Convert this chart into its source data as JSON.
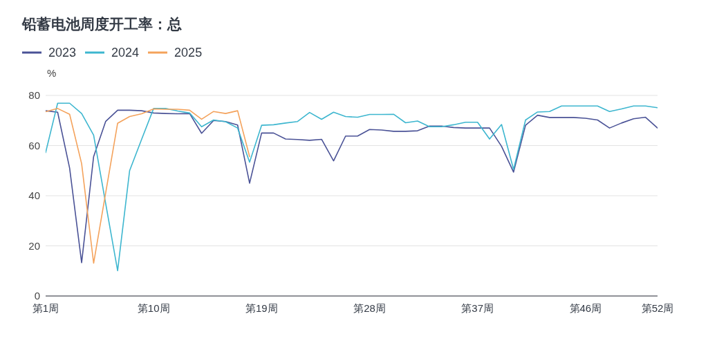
{
  "chart_data": {
    "type": "line",
    "title": "铅蓄电池周度开工率：总",
    "ylabel": "%",
    "categories": [
      "第1周",
      null,
      null,
      null,
      null,
      null,
      null,
      null,
      null,
      "第10周",
      null,
      null,
      null,
      null,
      null,
      null,
      null,
      null,
      "第19周",
      null,
      null,
      null,
      null,
      null,
      null,
      null,
      null,
      "第28周",
      null,
      null,
      null,
      null,
      null,
      null,
      null,
      null,
      "第37周",
      null,
      null,
      null,
      null,
      null,
      null,
      null,
      null,
      "第46周",
      null,
      null,
      null,
      null,
      null,
      "第52周"
    ],
    "series": [
      {
        "name": "2023",
        "color": "#4a5296",
        "values": [
          73.9,
          73.3,
          51.0,
          13.3,
          55.6,
          69.6,
          74.1,
          74.1,
          73.9,
          73.0,
          72.8,
          72.7,
          72.8,
          64.9,
          70.0,
          69.6,
          68.2,
          45.0,
          65.0,
          65.0,
          62.6,
          62.4,
          62.1,
          62.5,
          53.9,
          63.8,
          63.8,
          66.4,
          66.2,
          65.7,
          65.7,
          65.9,
          67.8,
          67.8,
          67.2,
          67.0,
          67.0,
          67.0,
          59.7,
          49.4,
          68.1,
          72.1,
          71.2,
          71.2,
          71.2,
          70.9,
          70.2,
          67.0,
          69.0,
          70.7,
          71.3,
          67.0
        ]
      },
      {
        "name": "2024",
        "color": "#3db6cf",
        "values": [
          57.2,
          76.9,
          76.9,
          72.8,
          64.2,
          37.0,
          10.1,
          50.0,
          62.5,
          74.8,
          74.8,
          73.8,
          73.0,
          67.5,
          70.2,
          69.5,
          67.0,
          53.4,
          68.1,
          68.3,
          69.0,
          69.6,
          73.2,
          70.5,
          73.3,
          71.6,
          71.3,
          72.4,
          72.4,
          72.5,
          69.1,
          69.8,
          67.5,
          67.5,
          68.3,
          69.3,
          69.3,
          62.6,
          68.4,
          50.5,
          70.2,
          73.4,
          73.6,
          75.8,
          75.8,
          75.8,
          75.8,
          73.6,
          74.6,
          75.8,
          75.8,
          75.1
        ]
      },
      {
        "name": "2025",
        "color": "#f4a25b",
        "values": [
          73.5,
          74.8,
          72.5,
          52.8,
          13.1,
          41.0,
          68.9,
          71.6,
          72.7,
          74.6,
          74.5,
          74.5,
          74.1,
          70.5,
          73.6,
          72.8,
          73.9,
          55.6,
          null,
          null,
          null,
          null,
          null,
          null,
          null,
          null,
          null,
          null,
          null,
          null,
          null,
          null,
          null,
          null,
          null,
          null,
          null,
          null,
          null,
          null,
          null,
          null,
          null,
          null,
          null,
          null,
          null,
          null,
          null,
          null,
          null,
          null
        ]
      }
    ],
    "ylim": [
      0,
      80
    ],
    "yticks": [
      0,
      20,
      40,
      60,
      80
    ],
    "grid": "y",
    "legend": "top left",
    "marker": "none",
    "line_style": "solid"
  }
}
